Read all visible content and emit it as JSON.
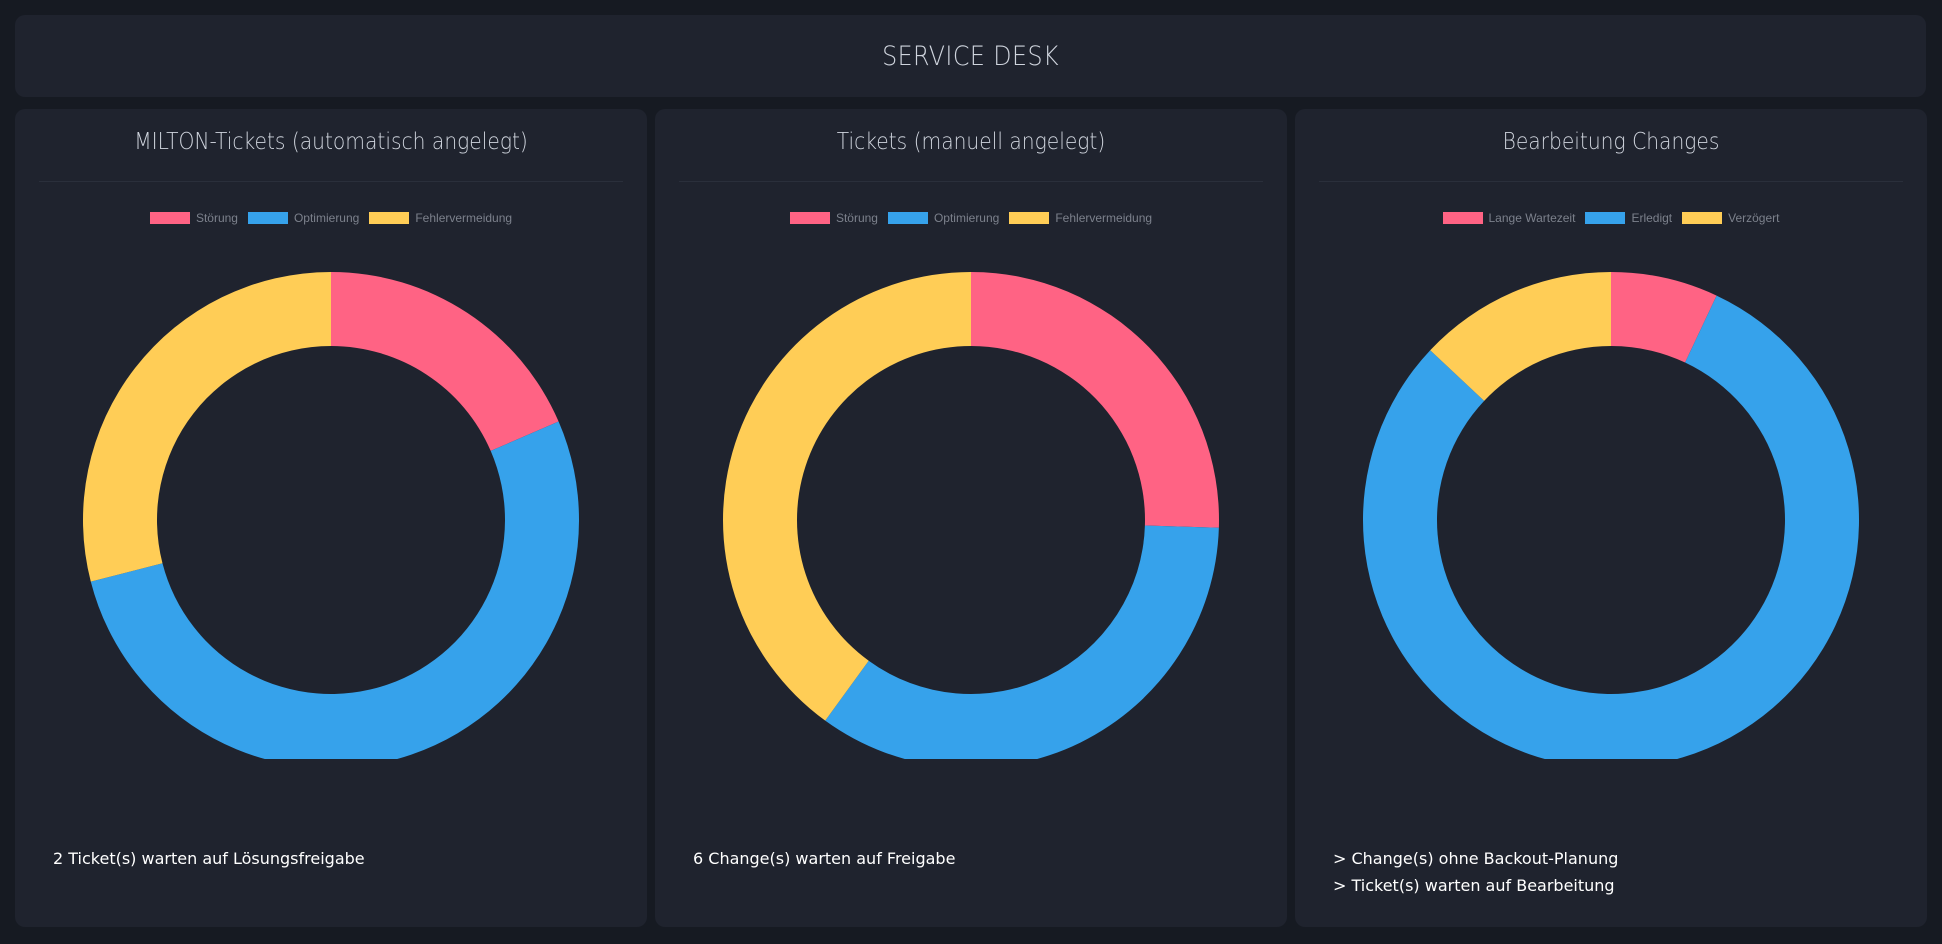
{
  "header": {
    "title": "SERVICE DESK"
  },
  "colors": {
    "red": "#ff6384",
    "blue": "#36a2eb",
    "yellow": "#ffcd56"
  },
  "panels": [
    {
      "title": "MILTON-Tickets (automatisch angelegt)",
      "notes": [
        "2 Ticket(s) warten auf Lösungsfreigabe"
      ]
    },
    {
      "title": "Tickets (manuell angelegt)",
      "notes": [
        "6 Change(s) warten auf Freigabe"
      ]
    },
    {
      "title": "Bearbeitung Changes",
      "notes": [
        "> Change(s) ohne Backout-Planung",
        "> Ticket(s) warten auf Bearbeitung"
      ]
    }
  ],
  "chart_data": [
    {
      "type": "pie",
      "donut": true,
      "title": "MILTON-Tickets (automatisch angelegt)",
      "legend_position": "top",
      "labels": [
        "Störung",
        "Optimierung",
        "Fehlervermeidung"
      ],
      "values": [
        18.5,
        52.5,
        29
      ],
      "colors": [
        "#ff6384",
        "#36a2eb",
        "#ffcd56"
      ]
    },
    {
      "type": "pie",
      "donut": true,
      "title": "Tickets (manuell angelegt)",
      "legend_position": "top",
      "labels": [
        "Störung",
        "Optimierung",
        "Fehlervermeidung"
      ],
      "values": [
        25.5,
        34.5,
        40
      ],
      "colors": [
        "#ff6384",
        "#36a2eb",
        "#ffcd56"
      ]
    },
    {
      "type": "pie",
      "donut": true,
      "title": "Bearbeitung Changes",
      "legend_position": "top",
      "labels": [
        "Lange Wartezeit",
        "Erledigt",
        "Verzögert"
      ],
      "values": [
        7,
        80,
        13
      ],
      "colors": [
        "#ff6384",
        "#36a2eb",
        "#ffcd56"
      ]
    }
  ]
}
